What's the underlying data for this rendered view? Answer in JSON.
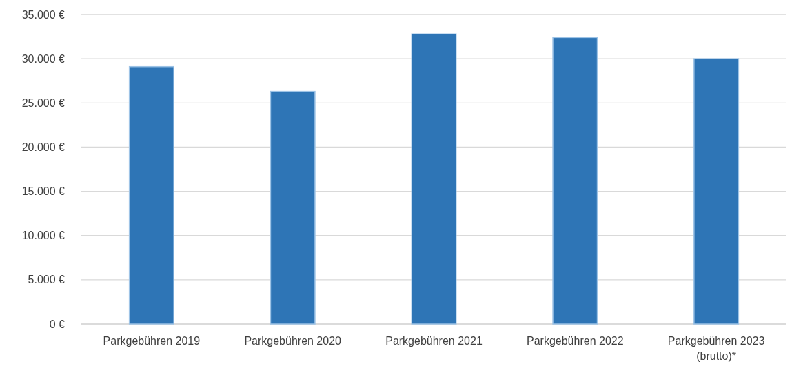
{
  "chart_data": {
    "type": "bar",
    "categories": [
      "Parkgebühren 2019",
      "Parkgebühren 2020",
      "Parkgebühren 2021",
      "Parkgebühren 2022",
      "Parkgebühren 2023\n(brutto)*"
    ],
    "values": [
      29100,
      26300,
      32800,
      32400,
      30000
    ],
    "color": "#2e75b6",
    "ylim": [
      0,
      35000
    ],
    "yticks": [
      {
        "value": 0,
        "label": "0 €"
      },
      {
        "value": 5000,
        "label": "5.000 €"
      },
      {
        "value": 10000,
        "label": "10.000 €"
      },
      {
        "value": 15000,
        "label": "15.000 €"
      },
      {
        "value": 20000,
        "label": "20.000 €"
      },
      {
        "value": 25000,
        "label": "25.000 €"
      },
      {
        "value": 30000,
        "label": "30.000 €"
      },
      {
        "value": 35000,
        "label": "35.000 €"
      }
    ],
    "grid": true
  }
}
